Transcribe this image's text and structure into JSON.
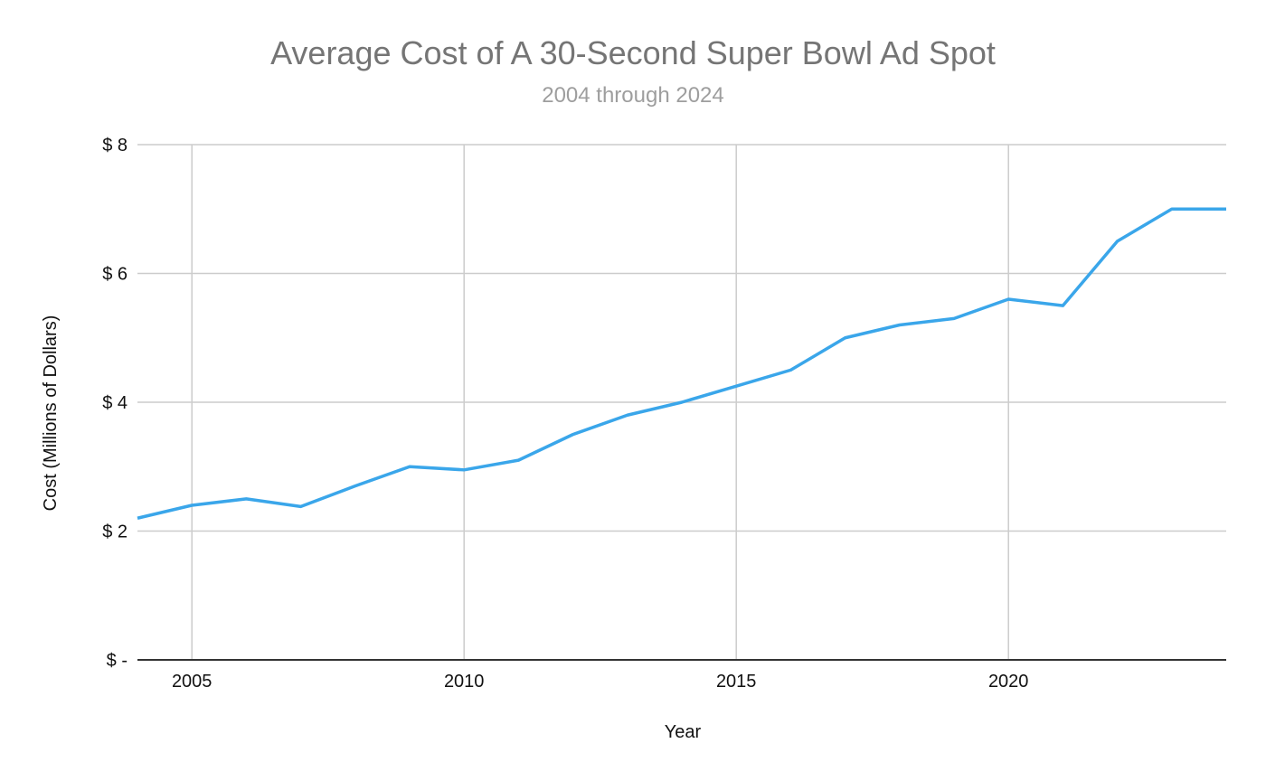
{
  "chart_data": {
    "type": "line",
    "title": "Average Cost of A 30-Second Super Bowl Ad Spot",
    "subtitle": "2004 through 2024",
    "xlabel": "Year",
    "ylabel": "Cost (Millions of Dollars)",
    "xlim": [
      2004,
      2024
    ],
    "ylim": [
      0,
      8
    ],
    "x_ticks": [
      2005,
      2010,
      2015,
      2020
    ],
    "x_tick_labels": [
      "2005",
      "2010",
      "2015",
      "2020"
    ],
    "y_ticks": [
      0,
      2,
      4,
      6,
      8
    ],
    "y_tick_labels": [
      "$ -",
      "$ 2",
      "$ 4",
      "$ 6",
      "$ 8"
    ],
    "grid": true,
    "legend": "none",
    "line_color": "#3aa6ea",
    "series": [
      {
        "x": [
          2004,
          2005,
          2006,
          2007,
          2008,
          2009,
          2010,
          2011,
          2012,
          2013,
          2014,
          2015,
          2016,
          2017,
          2018,
          2019,
          2020,
          2021,
          2022,
          2023,
          2024
        ],
        "values": [
          2.2,
          2.4,
          2.5,
          2.38,
          2.7,
          3.0,
          2.95,
          3.1,
          3.5,
          3.8,
          4.0,
          4.25,
          4.5,
          5.0,
          5.2,
          5.3,
          5.6,
          5.5,
          6.5,
          7.0,
          7.0
        ]
      }
    ]
  }
}
